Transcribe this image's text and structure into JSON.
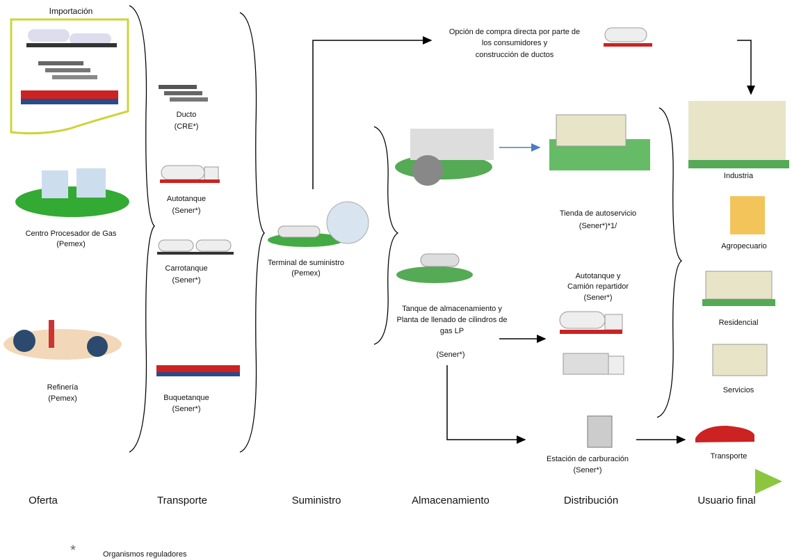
{
  "nodes": [
    {
      "lines": [
        "Importación"
      ]
    },
    {
      "lines": [
        "Centro Procesador de Gas",
        "(Pemex)"
      ]
    },
    {
      "lines": [
        "Refinería",
        "(Pemex)"
      ]
    },
    {
      "lines": [
        "Ducto",
        "(CRE*)"
      ]
    },
    {
      "lines": [
        "Autotanque",
        "(Sener*)"
      ]
    },
    {
      "lines": [
        "Carrotanque",
        "(Sener*)"
      ]
    },
    {
      "lines": [
        "Buquetanque",
        "(Sener*)"
      ]
    },
    {
      "lines": [
        "Terminal de suministro",
        "(Pemex)"
      ]
    },
    {
      "lines": [
        "Opción de compra directa por parte de",
        "los consumidores y",
        "construcción de ductos"
      ]
    },
    {
      "lines": [
        "Tanque de almacenamiento y",
        "Planta de llenado de cilindros de",
        "gas LP",
        "(Sener*)"
      ]
    },
    {
      "lines": [
        "Tienda de autoservicio",
        "(Sener*)*1/"
      ]
    },
    {
      "lines": [
        "Autotanque y",
        "Camión repartidor",
        "(Sener*)"
      ]
    },
    {
      "lines": [
        "Estación de carburación",
        "(Sener*)"
      ]
    },
    {
      "lines": [
        "Industria"
      ]
    },
    {
      "lines": [
        "Agropecuario"
      ]
    },
    {
      "lines": [
        "Residencial"
      ]
    },
    {
      "lines": [
        "Servicios"
      ]
    },
    {
      "lines": [
        "Transporte"
      ]
    }
  ],
  "stages": [
    "Oferta",
    "Transporte",
    "Suministro",
    "Almacenamiento",
    "Distribución",
    "Usuario final"
  ],
  "footnote": {
    "symbol": "*",
    "text": "Organismos reguladores"
  }
}
